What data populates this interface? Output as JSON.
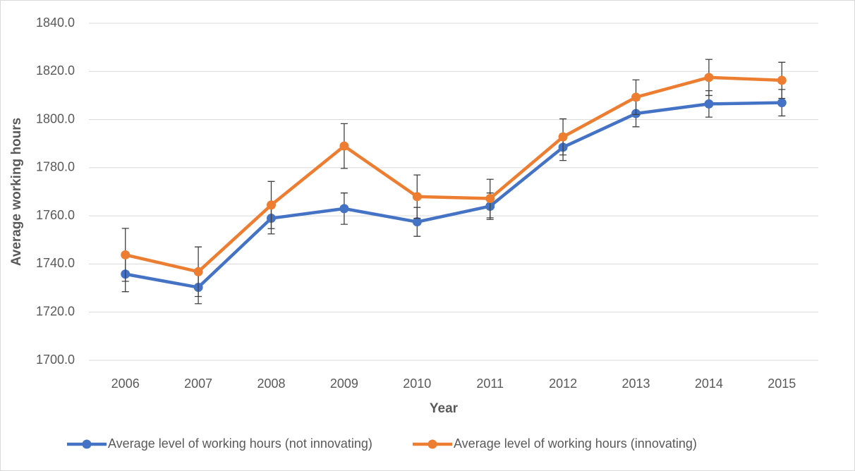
{
  "chart_data": {
    "type": "line",
    "x_label": "Year",
    "y_label": "Average working hours",
    "categories": [
      "2006",
      "2007",
      "2008",
      "2009",
      "2010",
      "2011",
      "2012",
      "2013",
      "2014",
      "2015"
    ],
    "series": [
      {
        "name": "Average level of working hours (not innovating)",
        "color": "#4472c4",
        "values": [
          1735.8,
          1730.3,
          1759.0,
          1763.0,
          1757.5,
          1764.0,
          1788.5,
          1802.5,
          1806.5,
          1807.0
        ],
        "errors": [
          7.3,
          6.8,
          6.5,
          6.5,
          6.0,
          5.5,
          5.5,
          5.5,
          5.5,
          5.5
        ]
      },
      {
        "name": "Average level of working hours (innovating)",
        "color": "#ed7d31",
        "values": [
          1743.8,
          1736.8,
          1764.5,
          1789.0,
          1768.0,
          1767.2,
          1792.8,
          1809.3,
          1817.5,
          1816.3
        ],
        "errors": [
          11.0,
          10.3,
          9.8,
          9.3,
          9.0,
          8.0,
          7.5,
          7.2,
          7.5,
          7.5
        ]
      }
    ],
    "ylim": [
      1700,
      1840
    ],
    "yticks": [
      {
        "value": 1700,
        "label": "1700.0"
      },
      {
        "value": 1720,
        "label": "1720.0"
      },
      {
        "value": 1740,
        "label": "1740.0"
      },
      {
        "value": 1760,
        "label": "1760.0"
      },
      {
        "value": 1780,
        "label": "1780.0"
      },
      {
        "value": 1800,
        "label": "1800.0"
      },
      {
        "value": 1820,
        "label": "1820.0"
      },
      {
        "value": 1840,
        "label": "1840.0"
      }
    ],
    "grid": true,
    "legend": "bottom"
  }
}
